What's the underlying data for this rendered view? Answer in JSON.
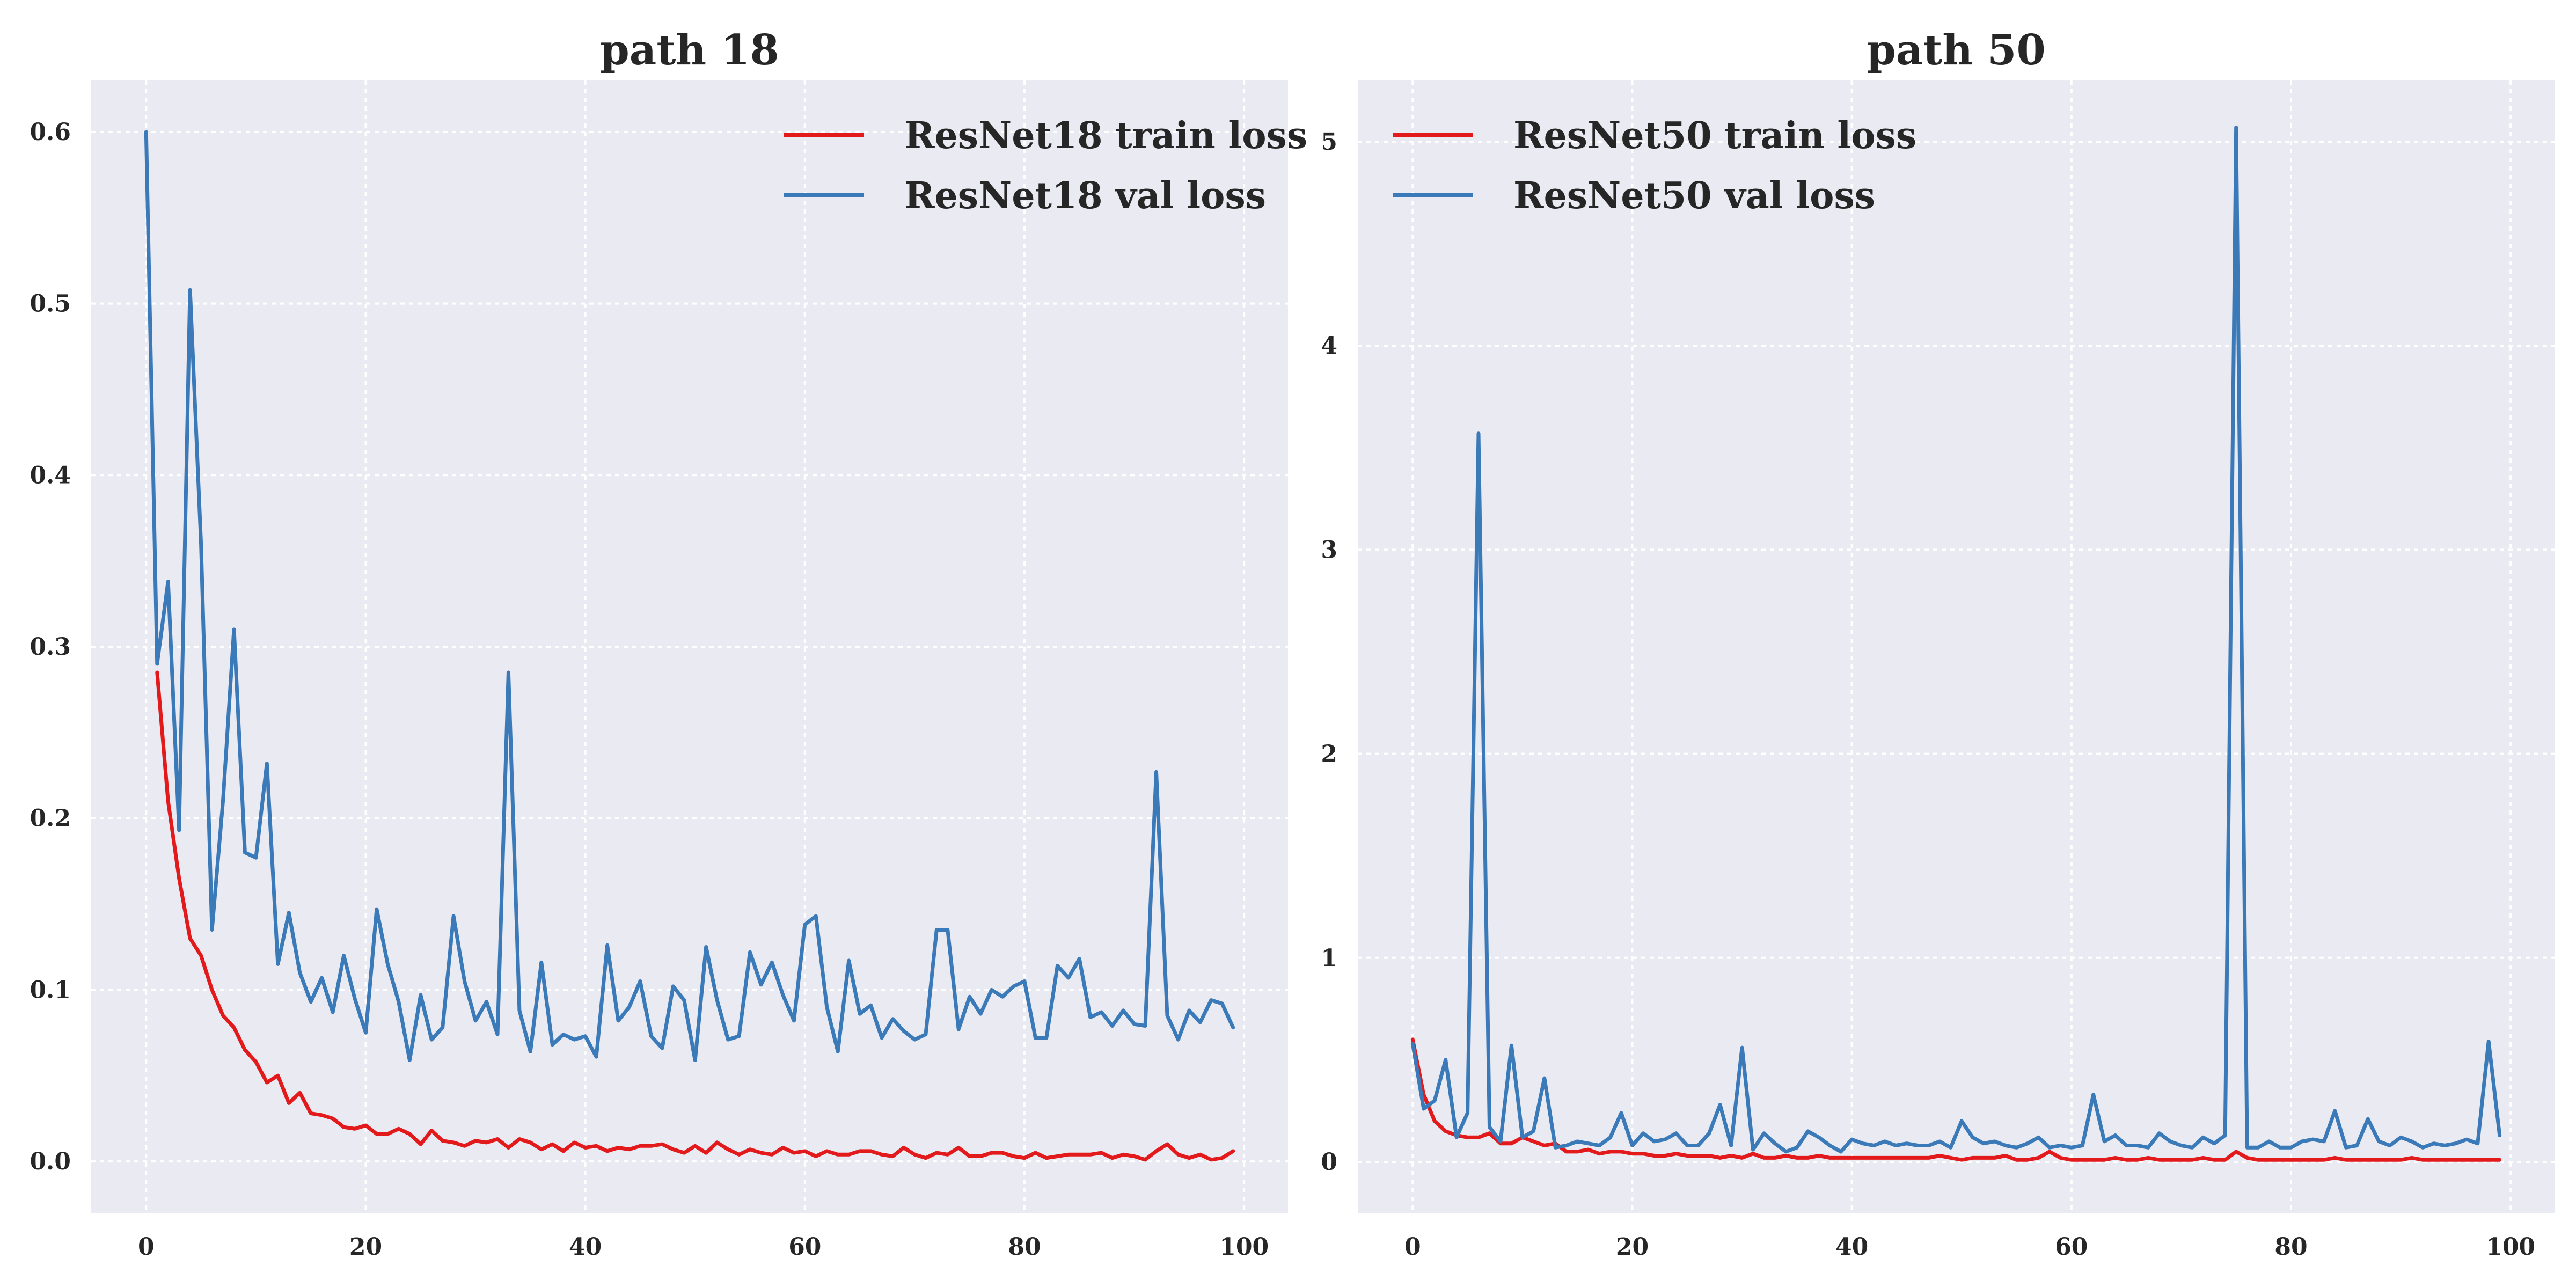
{
  "colors": {
    "train": "#e31a1c",
    "val": "#3a7ab8",
    "background": "#eaeaf2"
  },
  "chart_data": [
    {
      "type": "line",
      "title": "path 18",
      "xlabel": "",
      "ylabel": "",
      "xlim": [
        -5,
        104
      ],
      "ylim": [
        -0.03,
        0.63
      ],
      "xticks": [
        0,
        20,
        40,
        60,
        80,
        100
      ],
      "xtick_labels": [
        "0",
        "20",
        "40",
        "60",
        "80",
        "100"
      ],
      "yticks": [
        0.0,
        0.1,
        0.2,
        0.3,
        0.4,
        0.5,
        0.6
      ],
      "ytick_labels": [
        "0.0",
        "0.1",
        "0.2",
        "0.3",
        "0.4",
        "0.5",
        "0.6"
      ],
      "grid": true,
      "legend": "top-right",
      "series": [
        {
          "name": "ResNet18 train loss",
          "color": "#e31a1c",
          "x_start": 1,
          "values": [
            0.285,
            0.21,
            0.165,
            0.13,
            0.12,
            0.1,
            0.085,
            0.078,
            0.065,
            0.058,
            0.046,
            0.05,
            0.034,
            0.04,
            0.028,
            0.027,
            0.025,
            0.02,
            0.019,
            0.021,
            0.016,
            0.016,
            0.019,
            0.016,
            0.01,
            0.018,
            0.012,
            0.011,
            0.009,
            0.012,
            0.011,
            0.013,
            0.008,
            0.013,
            0.011,
            0.007,
            0.01,
            0.006,
            0.011,
            0.008,
            0.009,
            0.006,
            0.008,
            0.007,
            0.009,
            0.009,
            0.01,
            0.007,
            0.005,
            0.009,
            0.005,
            0.011,
            0.007,
            0.004,
            0.007,
            0.005,
            0.004,
            0.008,
            0.005,
            0.006,
            0.003,
            0.006,
            0.004,
            0.004,
            0.006,
            0.006,
            0.004,
            0.003,
            0.008,
            0.004,
            0.002,
            0.005,
            0.004,
            0.008,
            0.003,
            0.003,
            0.005,
            0.005,
            0.003,
            0.002,
            0.005,
            0.002,
            0.003,
            0.004,
            0.004,
            0.004,
            0.005,
            0.002,
            0.004,
            0.003,
            0.001,
            0.006,
            0.01,
            0.004,
            0.002,
            0.004,
            0.001,
            0.002,
            0.006
          ]
        },
        {
          "name": "ResNet18 val loss",
          "color": "#3a7ab8",
          "x_start": 0,
          "values": [
            0.6,
            0.29,
            0.338,
            0.193,
            0.508,
            0.36,
            0.135,
            0.21,
            0.31,
            0.18,
            0.177,
            0.232,
            0.115,
            0.145,
            0.11,
            0.093,
            0.107,
            0.087,
            0.12,
            0.095,
            0.075,
            0.147,
            0.115,
            0.093,
            0.059,
            0.097,
            0.071,
            0.078,
            0.143,
            0.105,
            0.082,
            0.093,
            0.074,
            0.285,
            0.088,
            0.064,
            0.116,
            0.068,
            0.074,
            0.071,
            0.073,
            0.061,
            0.126,
            0.082,
            0.09,
            0.105,
            0.073,
            0.066,
            0.102,
            0.094,
            0.059,
            0.125,
            0.094,
            0.071,
            0.073,
            0.122,
            0.103,
            0.116,
            0.097,
            0.082,
            0.138,
            0.143,
            0.09,
            0.064,
            0.117,
            0.086,
            0.091,
            0.072,
            0.083,
            0.076,
            0.071,
            0.074,
            0.135,
            0.135,
            0.077,
            0.096,
            0.086,
            0.1,
            0.096,
            0.102,
            0.105,
            0.072,
            0.072,
            0.114,
            0.107,
            0.118,
            0.084,
            0.087,
            0.079,
            0.088,
            0.08,
            0.079,
            0.227,
            0.085,
            0.071,
            0.088,
            0.081,
            0.094,
            0.092,
            0.078
          ]
        }
      ]
    },
    {
      "type": "line",
      "title": "path 50",
      "xlabel": "",
      "ylabel": "",
      "xlim": [
        -5,
        104
      ],
      "ylim": [
        -0.25,
        5.3
      ],
      "xticks": [
        0,
        20,
        40,
        60,
        80,
        100
      ],
      "xtick_labels": [
        "0",
        "20",
        "40",
        "60",
        "80",
        "100"
      ],
      "yticks": [
        0,
        1,
        2,
        3,
        4,
        5
      ],
      "ytick_labels": [
        "0",
        "1",
        "2",
        "3",
        "4",
        "5"
      ],
      "grid": true,
      "legend": "top-left",
      "series": [
        {
          "name": "ResNet50 train loss",
          "color": "#e31a1c",
          "x_start": 0,
          "values": [
            0.6,
            0.33,
            0.2,
            0.15,
            0.13,
            0.12,
            0.12,
            0.14,
            0.09,
            0.09,
            0.12,
            0.1,
            0.08,
            0.09,
            0.05,
            0.05,
            0.06,
            0.04,
            0.05,
            0.05,
            0.04,
            0.04,
            0.03,
            0.03,
            0.04,
            0.03,
            0.03,
            0.03,
            0.02,
            0.03,
            0.02,
            0.04,
            0.02,
            0.02,
            0.03,
            0.02,
            0.02,
            0.03,
            0.02,
            0.02,
            0.02,
            0.02,
            0.02,
            0.02,
            0.02,
            0.02,
            0.02,
            0.02,
            0.03,
            0.02,
            0.01,
            0.02,
            0.02,
            0.02,
            0.03,
            0.01,
            0.01,
            0.02,
            0.05,
            0.02,
            0.01,
            0.01,
            0.01,
            0.01,
            0.02,
            0.01,
            0.01,
            0.02,
            0.01,
            0.01,
            0.01,
            0.01,
            0.02,
            0.01,
            0.01,
            0.05,
            0.02,
            0.01,
            0.01,
            0.01,
            0.01,
            0.01,
            0.01,
            0.01,
            0.02,
            0.01,
            0.01,
            0.01,
            0.01,
            0.01,
            0.01,
            0.02,
            0.01,
            0.01,
            0.01,
            0.01,
            0.01,
            0.01,
            0.01,
            0.01
          ]
        },
        {
          "name": "ResNet50 val loss",
          "color": "#3a7ab8",
          "x_start": 0,
          "values": [
            0.58,
            0.26,
            0.3,
            0.5,
            0.12,
            0.24,
            3.57,
            0.17,
            0.1,
            0.57,
            0.12,
            0.15,
            0.41,
            0.07,
            0.08,
            0.1,
            0.09,
            0.08,
            0.12,
            0.24,
            0.08,
            0.14,
            0.1,
            0.11,
            0.14,
            0.08,
            0.08,
            0.14,
            0.28,
            0.08,
            0.56,
            0.06,
            0.14,
            0.09,
            0.05,
            0.07,
            0.15,
            0.12,
            0.08,
            0.05,
            0.11,
            0.09,
            0.08,
            0.1,
            0.08,
            0.09,
            0.08,
            0.08,
            0.1,
            0.07,
            0.2,
            0.12,
            0.09,
            0.1,
            0.08,
            0.07,
            0.09,
            0.12,
            0.07,
            0.08,
            0.07,
            0.08,
            0.33,
            0.1,
            0.13,
            0.08,
            0.08,
            0.07,
            0.14,
            0.1,
            0.08,
            0.07,
            0.12,
            0.09,
            0.13,
            5.07,
            0.07,
            0.07,
            0.1,
            0.07,
            0.07,
            0.1,
            0.11,
            0.1,
            0.25,
            0.07,
            0.08,
            0.21,
            0.1,
            0.08,
            0.12,
            0.1,
            0.07,
            0.09,
            0.08,
            0.09,
            0.11,
            0.09,
            0.59,
            0.13
          ]
        }
      ]
    }
  ]
}
